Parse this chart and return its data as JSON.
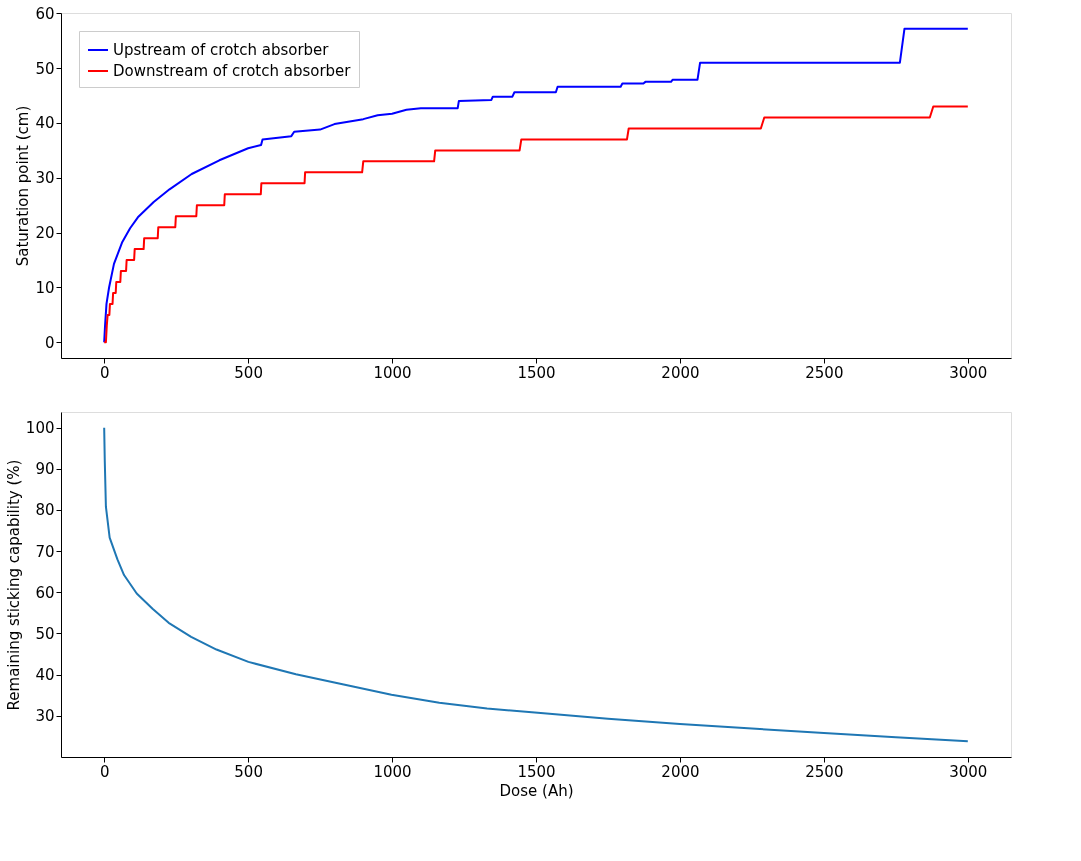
{
  "chart_data": [
    {
      "type": "line",
      "ylabel": "Saturation point (cm)",
      "xlim": [
        -150,
        3150
      ],
      "ylim": [
        -2.86,
        60.06
      ],
      "xticks": [
        0,
        500,
        1000,
        1500,
        2000,
        2500,
        3000
      ],
      "yticks": [
        0,
        10,
        20,
        30,
        40,
        50,
        60
      ],
      "grid": false,
      "legend": "top left",
      "series": [
        {
          "name": "Upstream of crotch absorber",
          "color": "#0000ff",
          "x": [
            0,
            3,
            8,
            17,
            34,
            62,
            90,
            117,
            172,
            227,
            304,
            400,
            500,
            545,
            550,
            650,
            660,
            750,
            800,
            900,
            950,
            1000,
            1050,
            1100,
            1228,
            1232,
            1345,
            1350,
            1418,
            1425,
            1569,
            1575,
            1794,
            1800,
            1873,
            1880,
            1969,
            1975,
            2061,
            2070,
            2764,
            2780,
            3000
          ],
          "values": [
            0,
            3,
            7,
            10,
            14.3,
            18.2,
            20.8,
            22.8,
            25.6,
            27.9,
            30.7,
            33.2,
            35.4,
            36.0,
            37.0,
            37.6,
            38.4,
            38.8,
            39.8,
            40.7,
            41.4,
            41.7,
            42.4,
            42.7,
            42.7,
            44.0,
            44.2,
            44.8,
            44.8,
            45.6,
            45.6,
            46.6,
            46.6,
            47.2,
            47.2,
            47.5,
            47.5,
            47.9,
            47.9,
            51.0,
            51.0,
            57.2,
            57.2
          ]
        },
        {
          "name": "Downstream of crotch absorber",
          "color": "#ff0000",
          "x": [
            0,
            6,
            9,
            12,
            18,
            20,
            29,
            31,
            40,
            42,
            56,
            58,
            76,
            78,
            104,
            106,
            137,
            139,
            186,
            188,
            247,
            249,
            320,
            322,
            417,
            419,
            544,
            546,
            696,
            698,
            896,
            900,
            1146,
            1150,
            1443,
            1449,
            1816,
            1822,
            2281,
            2293,
            2868,
            2880,
            3000
          ],
          "values": [
            0,
            0,
            3,
            5,
            5,
            7,
            7,
            9,
            9,
            11,
            11,
            13,
            13,
            15,
            15,
            17,
            17,
            19,
            19,
            21,
            21,
            23,
            23,
            25,
            25,
            27,
            27,
            29,
            29,
            31,
            31,
            33,
            33,
            35,
            35,
            37,
            37,
            39,
            39,
            41,
            41,
            43,
            43
          ]
        }
      ]
    },
    {
      "type": "line",
      "xlabel": "Dose (Ah)",
      "ylabel": "Remaining sticking capability (%)",
      "xlim": [
        -150,
        3150
      ],
      "ylim": [
        20.0,
        103.8
      ],
      "xticks": [
        0,
        500,
        1000,
        1500,
        2000,
        2500,
        3000
      ],
      "yticks": [
        30,
        40,
        50,
        60,
        70,
        80,
        90,
        100
      ],
      "grid": false,
      "series": [
        {
          "color": "#1f77b4",
          "x": [
            0,
            2,
            6,
            19,
            46,
            69,
            113,
            168,
            224,
            302,
            390,
            501,
            666,
            832,
            998,
            1164,
            1330,
            1496,
            1750,
            2000,
            2250,
            2500,
            2750,
            3000
          ],
          "values": [
            100,
            92.1,
            80.8,
            73.3,
            68.0,
            64.2,
            59.7,
            56.0,
            52.6,
            49.2,
            46.1,
            43.1,
            40.1,
            37.6,
            35.1,
            33.2,
            31.8,
            30.8,
            29.3,
            28.0,
            26.9,
            25.8,
            24.8,
            23.8
          ]
        }
      ]
    }
  ]
}
